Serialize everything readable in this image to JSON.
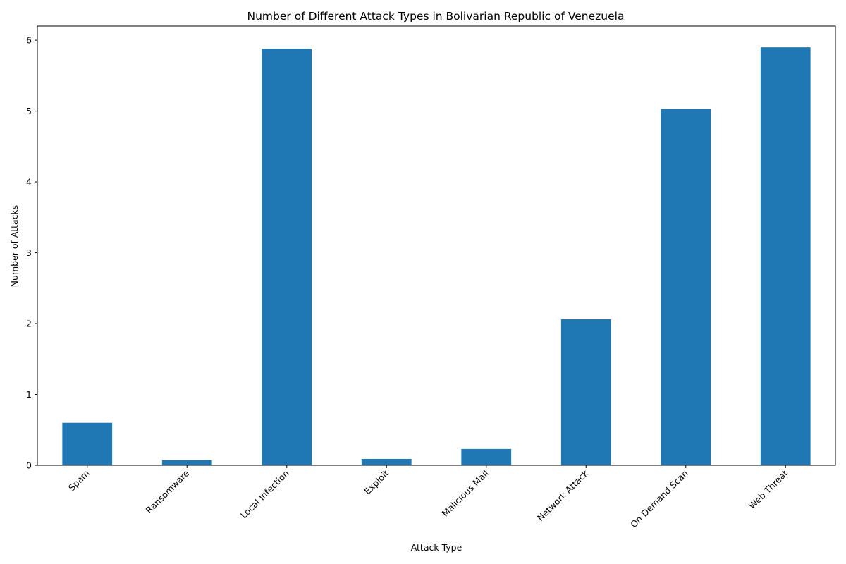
{
  "chart_data": {
    "type": "bar",
    "title": "Number of Different Attack Types in Bolivarian Republic of Venezuela",
    "xlabel": "Attack Type",
    "ylabel": "Number of Attacks",
    "categories": [
      "Spam",
      "Ransomware",
      "Local Infection",
      "Exploit",
      "Malicious Mail",
      "Network Attack",
      "On Demand Scan",
      "Web Threat"
    ],
    "values": [
      0.6,
      0.07,
      5.88,
      0.09,
      0.23,
      2.06,
      5.03,
      5.9
    ],
    "ylim": [
      0,
      6.2
    ],
    "yticks": [
      0,
      1,
      2,
      3,
      4,
      5,
      6
    ],
    "bar_color": "#1f77b4",
    "grid": false,
    "legend": "none"
  }
}
